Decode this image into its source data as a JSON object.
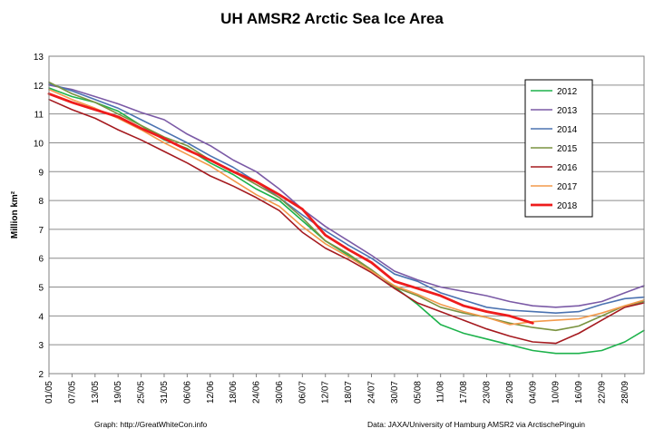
{
  "chart_data": {
    "type": "line",
    "title": "UH AMSR2 Arctic Sea Ice Area",
    "ylabel": "Million km²",
    "xlabel": "",
    "ylim": [
      2,
      13
    ],
    "y_ticks": [
      2,
      3,
      4,
      5,
      6,
      7,
      8,
      9,
      10,
      11,
      12,
      13
    ],
    "x_range_days": [
      0,
      155
    ],
    "x_tick_labels": [
      "01/05",
      "07/05",
      "13/05",
      "19/05",
      "25/05",
      "31/05",
      "06/06",
      "12/06",
      "18/06",
      "24/06",
      "30/06",
      "06/07",
      "12/07",
      "18/07",
      "24/07",
      "30/07",
      "05/08",
      "11/08",
      "17/08",
      "23/08",
      "29/08",
      "04/09",
      "10/09",
      "16/09",
      "22/09",
      "28/09"
    ],
    "grid": true,
    "legend_position": "top-right",
    "x": [
      0,
      6,
      12,
      18,
      24,
      30,
      36,
      42,
      48,
      54,
      60,
      66,
      72,
      78,
      84,
      90,
      96,
      102,
      108,
      114,
      120,
      126,
      132,
      138,
      144,
      150,
      155
    ],
    "series": [
      {
        "name": "2012",
        "color": "#1db24b",
        "width": 1.6,
        "values": [
          11.9,
          11.6,
          11.4,
          11.1,
          10.6,
          10.1,
          9.8,
          9.3,
          8.9,
          8.4,
          8.0,
          7.3,
          6.6,
          6.1,
          5.6,
          5.0,
          4.4,
          3.7,
          3.4,
          3.2,
          3.0,
          2.8,
          2.7,
          2.7,
          2.8,
          3.1,
          3.5
        ]
      },
      {
        "name": "2013",
        "color": "#7b5aa6",
        "width": 1.6,
        "values": [
          12.0,
          11.85,
          11.6,
          11.35,
          11.05,
          10.8,
          10.3,
          9.9,
          9.4,
          9.0,
          8.4,
          7.7,
          7.1,
          6.6,
          6.1,
          5.55,
          5.25,
          5.0,
          4.85,
          4.7,
          4.5,
          4.35,
          4.3,
          4.35,
          4.5,
          4.8,
          5.05
        ]
      },
      {
        "name": "2014",
        "color": "#4b73b1",
        "width": 1.6,
        "values": [
          12.05,
          11.8,
          11.5,
          11.2,
          10.8,
          10.4,
          10.0,
          9.55,
          9.15,
          8.65,
          8.1,
          7.5,
          6.95,
          6.45,
          6.0,
          5.45,
          5.2,
          4.8,
          4.55,
          4.3,
          4.2,
          4.15,
          4.1,
          4.15,
          4.4,
          4.6,
          4.65
        ]
      },
      {
        "name": "2015",
        "color": "#7a9340",
        "width": 1.6,
        "values": [
          12.1,
          11.7,
          11.4,
          11.0,
          10.6,
          10.2,
          9.9,
          9.4,
          9.0,
          8.55,
          8.1,
          7.4,
          6.6,
          6.15,
          5.6,
          5.0,
          4.7,
          4.3,
          4.1,
          3.95,
          3.75,
          3.6,
          3.5,
          3.65,
          4.0,
          4.35,
          4.5
        ]
      },
      {
        "name": "2016",
        "color": "#a51a1f",
        "width": 1.6,
        "values": [
          11.5,
          11.15,
          10.85,
          10.45,
          10.1,
          9.7,
          9.3,
          8.85,
          8.5,
          8.1,
          7.65,
          6.9,
          6.35,
          5.95,
          5.5,
          4.95,
          4.45,
          4.15,
          3.85,
          3.55,
          3.3,
          3.1,
          3.05,
          3.4,
          3.85,
          4.3,
          4.45
        ]
      },
      {
        "name": "2017",
        "color": "#f39a4b",
        "width": 1.6,
        "values": [
          11.85,
          11.5,
          11.2,
          10.85,
          10.45,
          10.0,
          9.6,
          9.2,
          8.7,
          8.2,
          7.8,
          7.1,
          6.5,
          6.05,
          5.55,
          5.05,
          4.75,
          4.4,
          4.15,
          3.95,
          3.7,
          3.8,
          3.85,
          3.9,
          4.1,
          4.35,
          4.55
        ]
      },
      {
        "name": "2018",
        "color": "#ee1c1c",
        "width": 2.8,
        "values": [
          11.7,
          11.4,
          11.15,
          10.9,
          10.5,
          10.15,
          9.75,
          9.4,
          9.0,
          8.65,
          8.2,
          7.7,
          6.8,
          6.3,
          5.85,
          5.2,
          4.95,
          4.7,
          4.35,
          4.15,
          4.0,
          3.75,
          null,
          null,
          null,
          null,
          null
        ]
      }
    ]
  },
  "footer": {
    "left": "Graph: http://GreatWhiteCon.info",
    "right": "Data: JAXA/University of Hamburg AMSR2 via  ArctischePinguin"
  }
}
